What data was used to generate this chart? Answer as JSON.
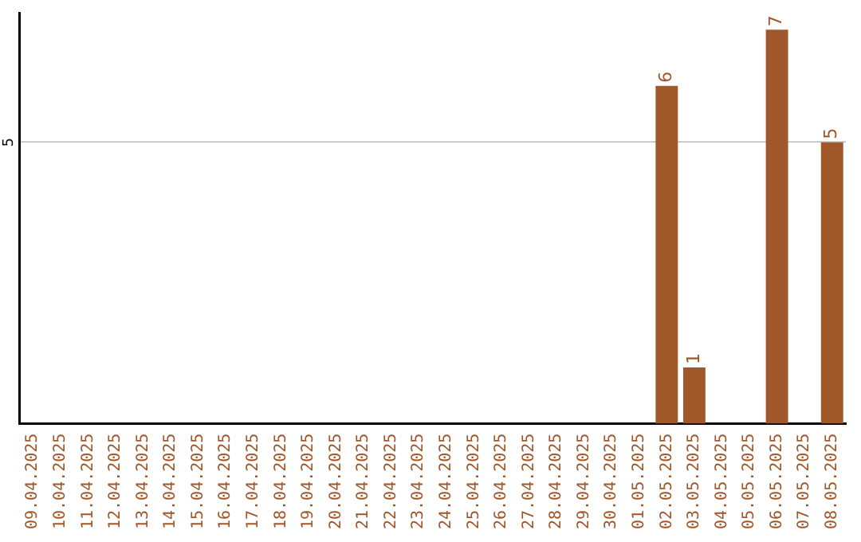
{
  "chart_data": {
    "type": "bar",
    "categories": [
      "09.04.2025",
      "10.04.2025",
      "11.04.2025",
      "12.04.2025",
      "13.04.2025",
      "14.04.2025",
      "15.04.2025",
      "16.04.2025",
      "17.04.2025",
      "18.04.2025",
      "19.04.2025",
      "20.04.2025",
      "21.04.2025",
      "22.04.2025",
      "23.04.2025",
      "24.04.2025",
      "25.04.2025",
      "26.04.2025",
      "27.04.2025",
      "28.04.2025",
      "29.04.2025",
      "30.04.2025",
      "01.05.2025",
      "02.05.2025",
      "03.05.2025",
      "04.05.2025",
      "05.05.2025",
      "06.05.2025",
      "07.05.2025",
      "08.05.2025"
    ],
    "values": [
      null,
      null,
      null,
      null,
      null,
      null,
      null,
      null,
      null,
      null,
      null,
      null,
      null,
      null,
      null,
      null,
      null,
      null,
      null,
      null,
      null,
      null,
      null,
      6,
      1,
      null,
      null,
      7,
      null,
      5
    ],
    "color": "#a0572a",
    "ylim": [
      0,
      7.3
    ],
    "yticks": [
      5
    ],
    "grid": "y",
    "data_labels": true,
    "legend": false
  }
}
